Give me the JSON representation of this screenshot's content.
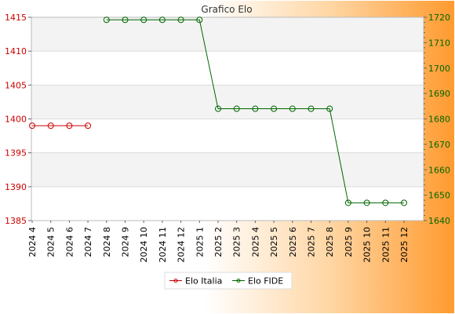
{
  "chart_data": {
    "type": "line",
    "title": "Grafico Elo",
    "categories": [
      "2024 4",
      "2024 5",
      "2024 6",
      "2024 7",
      "2024 8",
      "2024 9",
      "2024 10",
      "2024 11",
      "2024 12",
      "2025 1",
      "2025 2",
      "2025 3",
      "2025 4",
      "2025 5",
      "2025 6",
      "2025 7",
      "2025 8",
      "2025 9",
      "2025 10",
      "2025 11",
      "2025 12"
    ],
    "y_left": {
      "min": 1385,
      "max": 1415,
      "ticks": [
        "1385",
        "1390",
        "1395",
        "1400",
        "1405",
        "1410",
        "1415"
      ],
      "color": "#cc0000"
    },
    "y_right": {
      "min": 1640,
      "max": 1720,
      "ticks": [
        "1640",
        "1650",
        "1660",
        "1670",
        "1680",
        "1690",
        "1700",
        "1710",
        "1720"
      ],
      "color": "#006600"
    },
    "series": [
      {
        "name": "Elo Italia",
        "axis": "left",
        "color": "#cc0000",
        "values": [
          1399,
          1399,
          1399,
          1399,
          null,
          null,
          null,
          null,
          null,
          null,
          null,
          null,
          null,
          null,
          null,
          null,
          null,
          null,
          null,
          null,
          null
        ]
      },
      {
        "name": "Elo FIDE",
        "axis": "right",
        "color": "#006600",
        "values": [
          null,
          null,
          null,
          null,
          1719,
          1719,
          1719,
          1719,
          1719,
          1719,
          1684,
          1684,
          1684,
          1684,
          1684,
          1684,
          1684,
          1647,
          1647,
          1647,
          1647
        ]
      }
    ],
    "grid": true,
    "legend_position": "bottom-center"
  }
}
